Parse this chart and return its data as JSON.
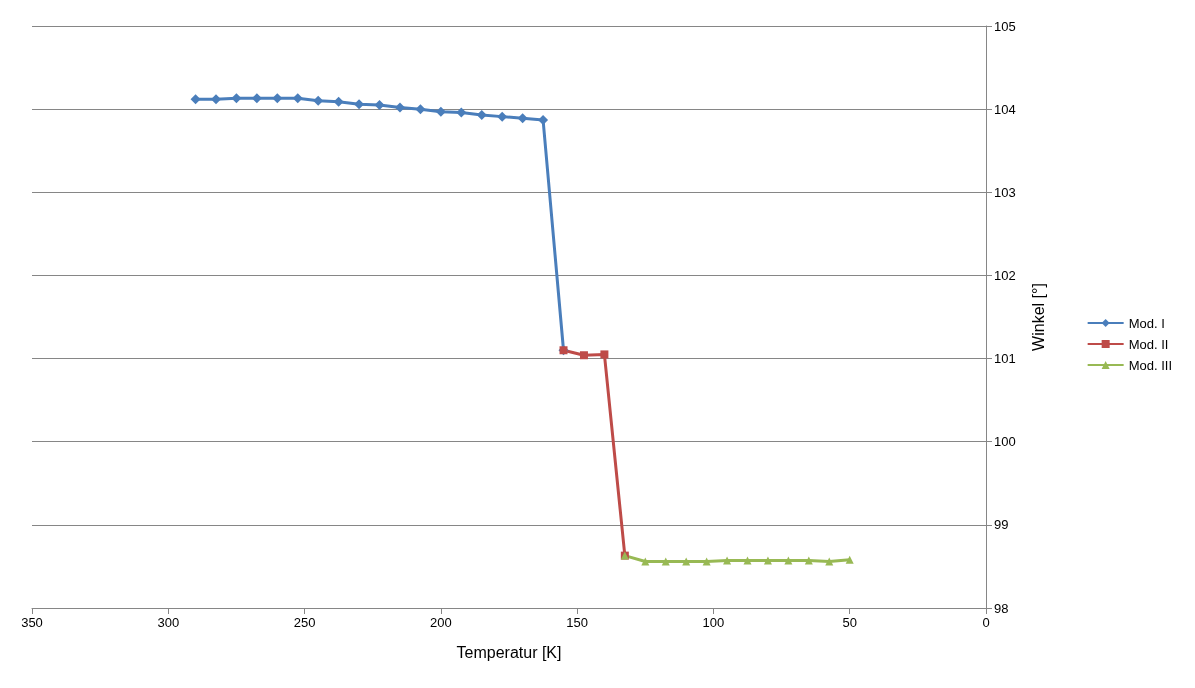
{
  "chart_data": {
    "type": "line",
    "xlabel": "Temperatur [K]",
    "ylabel": "Winkel [°]",
    "xlim": [
      350,
      0
    ],
    "xticks": [
      350,
      300,
      250,
      200,
      150,
      100,
      50,
      0
    ],
    "ylim": [
      98,
      105
    ],
    "yticks": [
      98,
      99,
      100,
      101,
      102,
      103,
      104,
      105
    ],
    "grid": "y",
    "legend": "right",
    "line_style": "solid",
    "series": [
      {
        "name": "Mod. I",
        "color": "#4a7ebb",
        "marker": "diamond",
        "x": [
          290,
          282.5,
          275,
          267.5,
          260,
          252.5,
          245,
          237.5,
          230,
          222.5,
          215,
          207.5,
          200,
          192.5,
          185,
          177.5,
          170,
          162.5,
          155
        ],
        "values": [
          104.12,
          104.12,
          104.13,
          104.13,
          104.13,
          104.13,
          104.1,
          104.09,
          104.06,
          104.05,
          104.02,
          104.0,
          103.97,
          103.96,
          103.93,
          103.91,
          103.89,
          103.87,
          101.1
        ]
      },
      {
        "name": "Mod. II",
        "color": "#be4b48",
        "marker": "square",
        "x": [
          155,
          147.5,
          140,
          132.5
        ],
        "values": [
          101.1,
          101.04,
          101.05,
          98.63
        ]
      },
      {
        "name": "Mod. III",
        "color": "#98b954",
        "marker": "triangle",
        "x": [
          132.5,
          125,
          117.5,
          110,
          102.5,
          95,
          87.5,
          80,
          72.5,
          65,
          57.5,
          50
        ],
        "values": [
          98.63,
          98.56,
          98.56,
          98.56,
          98.56,
          98.57,
          98.57,
          98.57,
          98.57,
          98.57,
          98.56,
          98.58
        ]
      }
    ]
  }
}
